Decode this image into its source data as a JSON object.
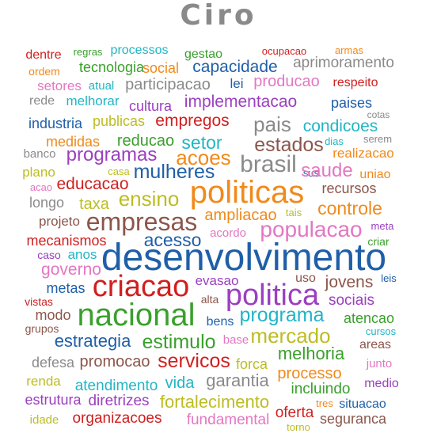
{
  "title": "Ciro",
  "words": [
    {
      "text": "dentre",
      "color": "#d11f1f"
    },
    {
      "text": "regras",
      "color": "#3aa02c"
    },
    {
      "text": "processos",
      "color": "#22b5c4"
    },
    {
      "text": "gestao",
      "color": "#3aa02c"
    },
    {
      "text": "ocupacao",
      "color": "#d11f1f"
    },
    {
      "text": "armas",
      "color": "#f08a1b"
    },
    {
      "text": "ordem",
      "color": "#f08a1b"
    },
    {
      "text": "tecnologia",
      "color": "#3aa02c"
    },
    {
      "text": "social",
      "color": "#f08a1b"
    },
    {
      "text": "capacidade",
      "color": "#1f5fa8"
    },
    {
      "text": "aprimoramento",
      "color": "#8a8a8a"
    },
    {
      "text": "setores",
      "color": "#e377c2"
    },
    {
      "text": "atual",
      "color": "#22b5c4"
    },
    {
      "text": "participacao",
      "color": "#8a8a8a"
    },
    {
      "text": "lei",
      "color": "#1f5fa8"
    },
    {
      "text": "producao",
      "color": "#e377c2"
    },
    {
      "text": "respeito",
      "color": "#d11f1f"
    },
    {
      "text": "rede",
      "color": "#8a8a8a"
    },
    {
      "text": "melhorar",
      "color": "#22b5c4"
    },
    {
      "text": "cultura",
      "color": "#9b3fc0"
    },
    {
      "text": "implementacao",
      "color": "#9b3fc0"
    },
    {
      "text": "paises",
      "color": "#1f5fa8"
    },
    {
      "text": "cotas",
      "color": "#8a8a8a"
    },
    {
      "text": "industria",
      "color": "#1f5fa8"
    },
    {
      "text": "publicas",
      "color": "#bcbd22"
    },
    {
      "text": "empregos",
      "color": "#d11f1f"
    },
    {
      "text": "pais",
      "color": "#8a8a8a"
    },
    {
      "text": "condicoes",
      "color": "#22b5c4"
    },
    {
      "text": "medidas",
      "color": "#f08a1b"
    },
    {
      "text": "reducao",
      "color": "#3aa02c"
    },
    {
      "text": "setor",
      "color": "#22b5c4"
    },
    {
      "text": "estados",
      "color": "#8c564b"
    },
    {
      "text": "dias",
      "color": "#22b5c4"
    },
    {
      "text": "serem",
      "color": "#8a8a8a"
    },
    {
      "text": "banco",
      "color": "#8a8a8a"
    },
    {
      "text": "programas",
      "color": "#9b3fc0"
    },
    {
      "text": "acoes",
      "color": "#f08a1b"
    },
    {
      "text": "realizacao",
      "color": "#f08a1b"
    },
    {
      "text": "plano",
      "color": "#bcbd22"
    },
    {
      "text": "casa",
      "color": "#bcbd22"
    },
    {
      "text": "mulheres",
      "color": "#1f5fa8"
    },
    {
      "text": "brasil",
      "color": "#8a8a8a"
    },
    {
      "text": "sus",
      "color": "#1f5fa8"
    },
    {
      "text": "saude",
      "color": "#e377c2"
    },
    {
      "text": "uniao",
      "color": "#f08a1b"
    },
    {
      "text": "acao",
      "color": "#e377c2"
    },
    {
      "text": "educacao",
      "color": "#d11f1f"
    },
    {
      "text": "recursos",
      "color": "#8c564b"
    },
    {
      "text": "longo",
      "color": "#8a8a8a"
    },
    {
      "text": "ensino",
      "color": "#bcbd22"
    },
    {
      "text": "politicas",
      "color": "#f08a1b"
    },
    {
      "text": "taxa",
      "color": "#bcbd22"
    },
    {
      "text": "controle",
      "color": "#f08a1b"
    },
    {
      "text": "projeto",
      "color": "#8c564b"
    },
    {
      "text": "empresas",
      "color": "#8c564b"
    },
    {
      "text": "ampliacao",
      "color": "#f08a1b"
    },
    {
      "text": "tais",
      "color": "#bcbd22"
    },
    {
      "text": "populacao",
      "color": "#e377c2"
    },
    {
      "text": "meta",
      "color": "#9b3fc0"
    },
    {
      "text": "mecanismos",
      "color": "#d11f1f"
    },
    {
      "text": "acesso",
      "color": "#1f5fa8"
    },
    {
      "text": "acordo",
      "color": "#e377c2"
    },
    {
      "text": "criar",
      "color": "#3aa02c"
    },
    {
      "text": "caso",
      "color": "#9b3fc0"
    },
    {
      "text": "anos",
      "color": "#22b5c4"
    },
    {
      "text": "desenvolvimento",
      "color": "#1f5fa8"
    },
    {
      "text": "governo",
      "color": "#e377c2"
    },
    {
      "text": "evasao",
      "color": "#9b3fc0"
    },
    {
      "text": "uso",
      "color": "#8c564b"
    },
    {
      "text": "jovens",
      "color": "#8c564b"
    },
    {
      "text": "leis",
      "color": "#1f5fa8"
    },
    {
      "text": "metas",
      "color": "#1f5fa8"
    },
    {
      "text": "criacao",
      "color": "#d11f1f"
    },
    {
      "text": "politica",
      "color": "#9b3fc0"
    },
    {
      "text": "sociais",
      "color": "#9b3fc0"
    },
    {
      "text": "vistas",
      "color": "#d11f1f"
    },
    {
      "text": "alta",
      "color": "#8c564b"
    },
    {
      "text": "modo",
      "color": "#8c564b"
    },
    {
      "text": "nacional",
      "color": "#3aa02c"
    },
    {
      "text": "bens",
      "color": "#1f5fa8"
    },
    {
      "text": "programa",
      "color": "#22b5c4"
    },
    {
      "text": "atencao",
      "color": "#3aa02c"
    },
    {
      "text": "grupos",
      "color": "#8c564b"
    },
    {
      "text": "cursos",
      "color": "#22b5c4"
    },
    {
      "text": "estrategia",
      "color": "#1f5fa8"
    },
    {
      "text": "estimulo",
      "color": "#3aa02c"
    },
    {
      "text": "base",
      "color": "#e377c2"
    },
    {
      "text": "mercado",
      "color": "#bcbd22"
    },
    {
      "text": "areas",
      "color": "#8c564b"
    },
    {
      "text": "melhoria",
      "color": "#3aa02c"
    },
    {
      "text": "defesa",
      "color": "#8a8a8a"
    },
    {
      "text": "promocao",
      "color": "#8c564b"
    },
    {
      "text": "servicos",
      "color": "#d11f1f"
    },
    {
      "text": "forca",
      "color": "#bcbd22"
    },
    {
      "text": "junto",
      "color": "#e377c2"
    },
    {
      "text": "processo",
      "color": "#f08a1b"
    },
    {
      "text": "renda",
      "color": "#bcbd22"
    },
    {
      "text": "atendimento",
      "color": "#22b5c4"
    },
    {
      "text": "vida",
      "color": "#22b5c4"
    },
    {
      "text": "garantia",
      "color": "#8a8a8a"
    },
    {
      "text": "incluindo",
      "color": "#3aa02c"
    },
    {
      "text": "medio",
      "color": "#9b3fc0"
    },
    {
      "text": "estrutura",
      "color": "#9b3fc0"
    },
    {
      "text": "diretrizes",
      "color": "#9b3fc0"
    },
    {
      "text": "fortalecimento",
      "color": "#bcbd22"
    },
    {
      "text": "tres",
      "color": "#f08a1b"
    },
    {
      "text": "situacao",
      "color": "#1f5fa8"
    },
    {
      "text": "idade",
      "color": "#bcbd22"
    },
    {
      "text": "organizacoes",
      "color": "#d11f1f"
    },
    {
      "text": "fundamental",
      "color": "#e377c2"
    },
    {
      "text": "oferta",
      "color": "#d11f1f"
    },
    {
      "text": "seguranca",
      "color": "#8c564b"
    },
    {
      "text": "torno",
      "color": "#bcbd22"
    }
  ]
}
